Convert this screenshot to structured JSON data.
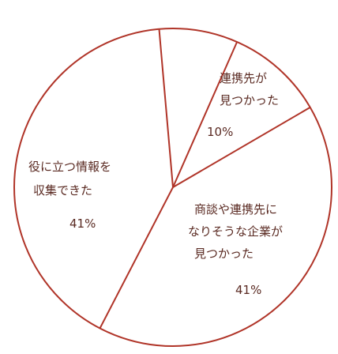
{
  "colors": {
    "outline": "#b03428",
    "text": "#5a2a22",
    "background": "#ffffff"
  },
  "chart_data": {
    "type": "pie",
    "slices": [
      {
        "label_lines": [
          "連携先が",
          "見つかった"
        ],
        "value": 10,
        "value_label": "10%"
      },
      {
        "label_lines": [
          "商談や連携先に",
          "なりそうな企業が",
          "見つかった"
        ],
        "value": 41,
        "value_label": "41%"
      },
      {
        "label_lines": [
          "役に立つ情報を",
          "収集できた"
        ],
        "value": 41,
        "value_label": "41%"
      }
    ]
  }
}
